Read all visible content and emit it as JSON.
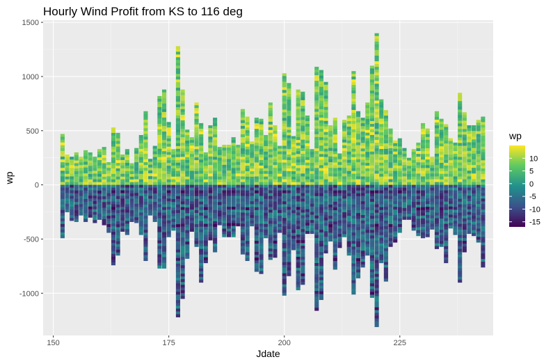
{
  "chart_data": {
    "type": "bar",
    "title": "Hourly Wind Profit from KS to 116 deg",
    "xlabel": "Jdate",
    "ylabel": "wp",
    "xlim": [
      147.8,
      245.2
    ],
    "ylim": [
      -1390,
      1520
    ],
    "x_ticks": [
      150,
      175,
      200,
      225
    ],
    "y_ticks": [
      -1000,
      -500,
      0,
      500,
      1000,
      1500
    ],
    "grid": true,
    "legend": {
      "title": "wp",
      "position": "right",
      "type": "colorbar",
      "range": [
        -17,
        15
      ],
      "ticks": [
        10,
        5,
        0,
        -5,
        -10,
        -15
      ],
      "colors": [
        "#440154",
        "#3b528b",
        "#21918c",
        "#5ec962",
        "#fde725"
      ]
    },
    "series": [
      {
        "name": "positive",
        "x": [
          152,
          153,
          154,
          155,
          156,
          157,
          158,
          159,
          160,
          161,
          162,
          163,
          164,
          165,
          166,
          167,
          168,
          169,
          170,
          171,
          172,
          173,
          174,
          175,
          176,
          177,
          178,
          179,
          180,
          181,
          182,
          183,
          184,
          185,
          186,
          187,
          188,
          189,
          190,
          191,
          192,
          193,
          194,
          195,
          196,
          197,
          198,
          199,
          200,
          201,
          202,
          203,
          204,
          205,
          206,
          207,
          208,
          209,
          210,
          211,
          212,
          213,
          214,
          215,
          216,
          217,
          218,
          219,
          220,
          221,
          222,
          223,
          224,
          225,
          226,
          227,
          228,
          229,
          230,
          231,
          232,
          233,
          234,
          235,
          236,
          237,
          238,
          239,
          240,
          241,
          242,
          243
        ],
        "y": [
          470,
          280,
          260,
          300,
          260,
          320,
          300,
          260,
          330,
          350,
          210,
          530,
          480,
          280,
          330,
          200,
          340,
          460,
          680,
          240,
          360,
          820,
          880,
          580,
          330,
          1280,
          880,
          510,
          440,
          760,
          570,
          300,
          550,
          620,
          350,
          370,
          370,
          440,
          370,
          700,
          630,
          400,
          620,
          610,
          460,
          760,
          550,
          360,
          1030,
          940,
          450,
          880,
          860,
          640,
          330,
          1090,
          1060,
          950,
          550,
          620,
          290,
          600,
          640,
          1050,
          680,
          620,
          760,
          1100,
          1400,
          790,
          690,
          520,
          410,
          430,
          340,
          250,
          330,
          390,
          570,
          520,
          260,
          680,
          610,
          560,
          430,
          390,
          850,
          670,
          550,
          550,
          600,
          630
        ]
      },
      {
        "name": "negative",
        "x": [
          152,
          153,
          154,
          155,
          156,
          157,
          158,
          159,
          160,
          161,
          162,
          163,
          164,
          165,
          166,
          167,
          168,
          169,
          170,
          171,
          172,
          173,
          174,
          175,
          176,
          177,
          178,
          179,
          180,
          181,
          182,
          183,
          184,
          185,
          186,
          187,
          188,
          189,
          190,
          191,
          192,
          193,
          194,
          195,
          196,
          197,
          198,
          199,
          200,
          201,
          202,
          203,
          204,
          205,
          206,
          207,
          208,
          209,
          210,
          211,
          212,
          213,
          214,
          215,
          216,
          217,
          218,
          219,
          220,
          221,
          222,
          223,
          224,
          225,
          226,
          227,
          228,
          229,
          230,
          231,
          232,
          233,
          234,
          235,
          236,
          237,
          238,
          239,
          240,
          241,
          242,
          243
        ],
        "y": [
          -490,
          -250,
          -330,
          -340,
          -280,
          -340,
          -300,
          -350,
          -320,
          -370,
          -440,
          -740,
          -650,
          -430,
          -460,
          -340,
          -350,
          -460,
          -700,
          -280,
          -340,
          -770,
          -770,
          -480,
          -420,
          -1220,
          -1050,
          -680,
          -430,
          -570,
          -900,
          -720,
          -510,
          -620,
          -370,
          -480,
          -480,
          -480,
          -380,
          -640,
          -700,
          -380,
          -800,
          -820,
          -490,
          -690,
          -670,
          -440,
          -1020,
          -840,
          -600,
          -970,
          -920,
          -450,
          -450,
          -1160,
          -1060,
          -630,
          -520,
          -780,
          -580,
          -480,
          -650,
          -1010,
          -860,
          -760,
          -650,
          -1040,
          -1310,
          -720,
          -890,
          -570,
          -530,
          -440,
          -320,
          -320,
          -420,
          -470,
          -490,
          -480,
          -410,
          -590,
          -570,
          -720,
          -400,
          -460,
          -900,
          -620,
          -450,
          -470,
          -530,
          -760
        ]
      }
    ]
  }
}
